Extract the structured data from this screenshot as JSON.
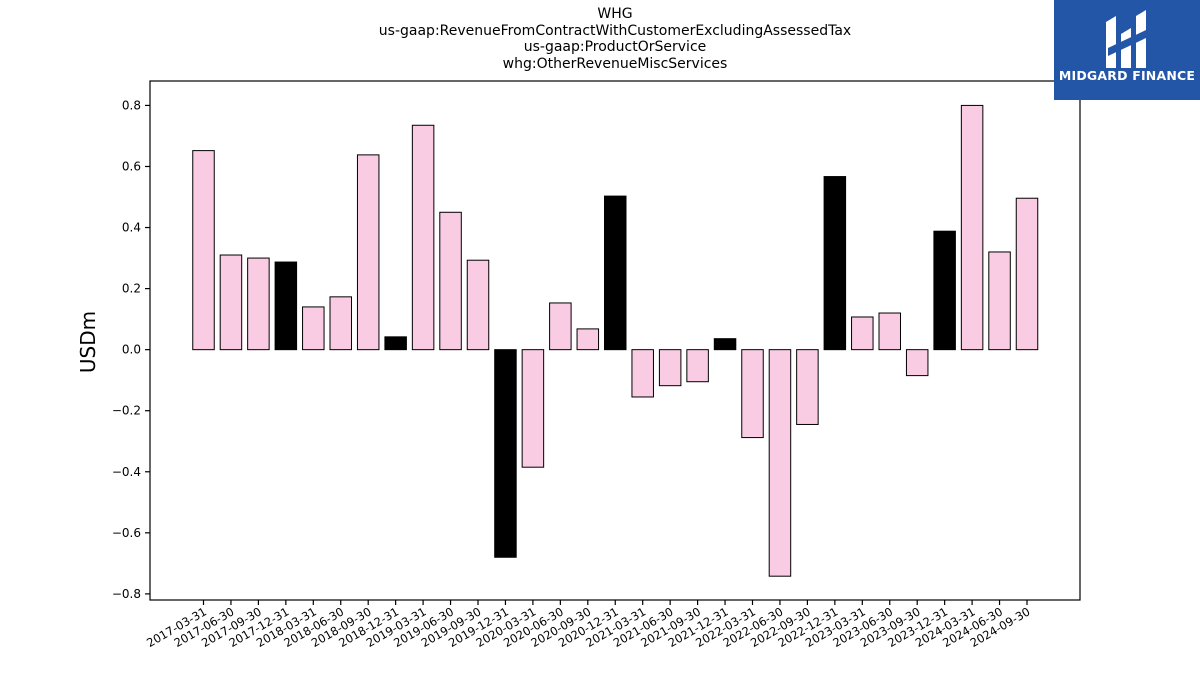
{
  "chart_data": {
    "type": "bar",
    "title_lines": [
      "WHG",
      "us-gaap:RevenueFromContractWithCustomerExcludingAssessedTax",
      "us-gaap:ProductOrService",
      "whg:OtherRevenueMiscServices"
    ],
    "xlabel": "",
    "ylabel": "USDm",
    "ylim": [
      -0.82,
      0.88
    ],
    "yticks": [
      -0.8,
      -0.6,
      -0.4,
      -0.2,
      0.0,
      0.2,
      0.4,
      0.6,
      0.8
    ],
    "ytick_labels": [
      "−0.8",
      "−0.6",
      "−0.4",
      "−0.2",
      "0.0",
      "0.2",
      "0.4",
      "0.6",
      "0.8"
    ],
    "grid": false,
    "colors": {
      "quarter": "#f9cce4",
      "year_end": "#000000",
      "edge": "#000000"
    },
    "categories": [
      "2017-03-31",
      "2017-06-30",
      "2017-09-30",
      "2017-12-31",
      "2018-03-31",
      "2018-06-30",
      "2018-09-30",
      "2018-12-31",
      "2019-03-31",
      "2019-06-30",
      "2019-09-30",
      "2019-12-31",
      "2020-03-31",
      "2020-06-30",
      "2020-09-30",
      "2020-12-31",
      "2021-03-31",
      "2021-06-30",
      "2021-09-30",
      "2021-12-31",
      "2022-03-31",
      "2022-06-30",
      "2022-09-30",
      "2022-12-31",
      "2023-03-31",
      "2023-06-30",
      "2023-09-30",
      "2023-12-31",
      "2024-03-31",
      "2024-06-30",
      "2024-09-30"
    ],
    "values": [
      0.652,
      0.31,
      0.3,
      0.287,
      0.14,
      0.173,
      0.638,
      0.042,
      0.735,
      0.45,
      0.293,
      -0.68,
      -0.385,
      0.153,
      0.068,
      0.503,
      -0.155,
      -0.118,
      -0.105,
      0.036,
      -0.288,
      -0.742,
      -0.245,
      0.567,
      0.107,
      0.12,
      -0.085,
      0.388,
      0.8,
      0.32,
      0.496
    ]
  },
  "logo": {
    "text": "MIDGARD FINANCE",
    "bg": "#2456a8"
  }
}
